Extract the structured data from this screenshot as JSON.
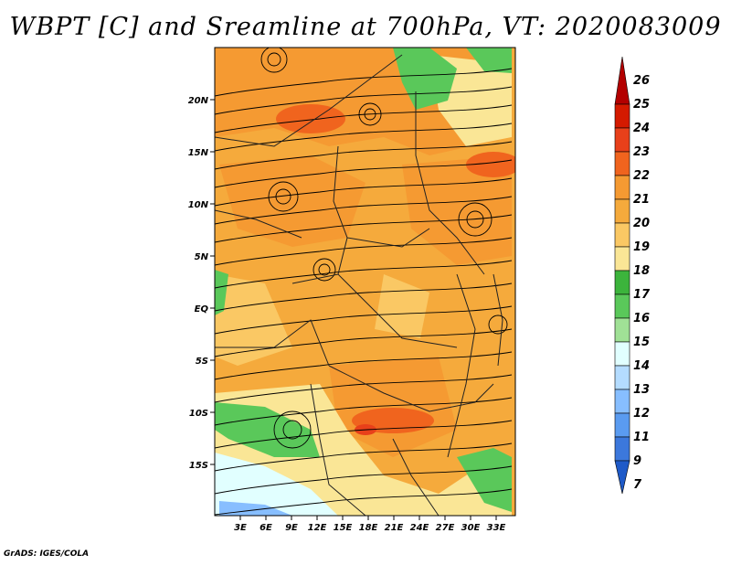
{
  "title": "WBPT [C] and Sreamline at 700hPa, VT: 2020083009",
  "credit": "GrADS: IGES/COLA",
  "map": {
    "lat_labels": [
      "20N",
      "15N",
      "10N",
      "5N",
      "EQ",
      "5S",
      "10S",
      "15S"
    ],
    "lon_labels": [
      "3E",
      "6E",
      "9E",
      "12E",
      "15E",
      "18E",
      "21E",
      "24E",
      "27E",
      "30E",
      "33E"
    ],
    "lat_range": [
      -20,
      25
    ],
    "lon_range": [
      0,
      35
    ]
  },
  "colorbar": {
    "labels": [
      "26",
      "25",
      "24",
      "23",
      "22",
      "21",
      "20",
      "19",
      "18",
      "17",
      "16",
      "15",
      "14",
      "13",
      "12",
      "11",
      "9",
      "7"
    ],
    "colors": [
      "#b30000",
      "#d41a00",
      "#e8401a",
      "#f0641e",
      "#f59a32",
      "#f5aa3c",
      "#fac864",
      "#fae696",
      "#3cb43c",
      "#5ac85a",
      "#a0e196",
      "#e1ffff",
      "#b4dcff",
      "#87beff",
      "#5a9bf0",
      "#3c78dc",
      "#1e5ac8"
    ]
  }
}
